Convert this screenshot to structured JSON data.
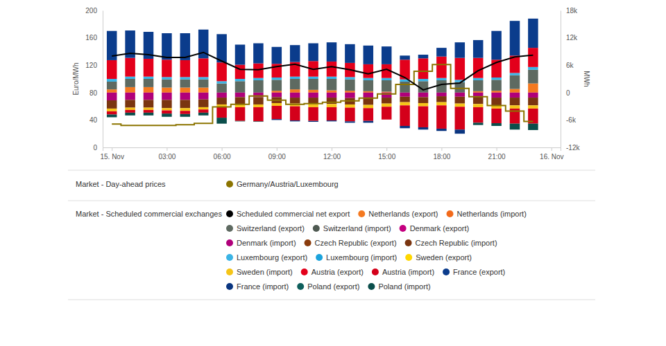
{
  "chart_data": {
    "type": "bar",
    "stacked": true,
    "grid": false,
    "legend": "bottom",
    "y_label": "Euro/MWh",
    "y2_label": "MWh",
    "legend_titles": [
      "Market - Day-ahead prices",
      "Market - Scheduled commercial exchanges"
    ],
    "x": [
      0,
      1,
      2,
      3,
      4,
      5,
      6,
      7,
      8,
      9,
      10,
      11,
      12,
      13,
      14,
      15,
      16,
      17,
      18,
      19,
      20,
      21,
      22,
      23
    ],
    "xlim": [
      -0.5,
      24.5
    ],
    "xticks": [
      {
        "value": 0,
        "label": "15. Nov"
      },
      {
        "value": 3,
        "label": "03:00"
      },
      {
        "value": 6,
        "label": "06:00"
      },
      {
        "value": 9,
        "label": "09:00"
      },
      {
        "value": 12,
        "label": "12:00"
      },
      {
        "value": 15,
        "label": "15:00"
      },
      {
        "value": 18,
        "label": "18:00"
      },
      {
        "value": 21,
        "label": "21:00"
      },
      {
        "value": 24,
        "label": "16. Nov"
      }
    ],
    "ylim": [
      0,
      200
    ],
    "yticks": [
      0,
      40,
      80,
      120,
      160,
      200
    ],
    "y2lim": [
      -12000,
      18000
    ],
    "y2ticks": [
      {
        "value": -12000,
        "label": "-12k"
      },
      {
        "value": -6000,
        "label": "-6k"
      },
      0,
      {
        "value": 6000,
        "label": "6k"
      },
      {
        "value": 12000,
        "label": "12k"
      },
      {
        "value": 18000,
        "label": "18k"
      }
    ],
    "series": [
      {
        "name": "Germany/Austria/Luxembourg",
        "type": "line",
        "line_style": "step",
        "axis": "y",
        "color": "#8c7400",
        "values": [
          34,
          32,
          32,
          32,
          33,
          35,
          59,
          63,
          75,
          69,
          63,
          64,
          66,
          68,
          72,
          78,
          92,
          111,
          121,
          86,
          74,
          61,
          53,
          38
        ]
      },
      {
        "name": "Scheduled commercial net export",
        "type": "line",
        "line_style": "solid",
        "axis": "y2",
        "color": "#000000",
        "values": [
          8000,
          8600,
          8300,
          7700,
          7700,
          8800,
          6900,
          5100,
          5000,
          5700,
          6200,
          5100,
          5700,
          5000,
          4100,
          5100,
          3300,
          600,
          1800,
          2100,
          4800,
          6600,
          7800,
          8200
        ]
      },
      {
        "name": "Netherlands (export)",
        "type": "bar",
        "axis": "y2",
        "color": "#f47920",
        "values": [
          700,
          1200,
          1200,
          1100,
          1100,
          1100,
          0,
          0,
          0,
          400,
          700,
          600,
          500,
          400,
          300,
          200,
          0,
          0,
          0,
          0,
          300,
          400,
          800,
          2000
        ]
      },
      {
        "name": "Netherlands (import)",
        "type": "bar",
        "axis": "y2",
        "color": "#f26a1b",
        "values": [
          0,
          0,
          0,
          0,
          0,
          0,
          0,
          0,
          0,
          0,
          0,
          0,
          0,
          0,
          0,
          0,
          0,
          0,
          0,
          0,
          0,
          0,
          0,
          0
        ]
      },
      {
        "name": "Switzerland (export)",
        "type": "bar",
        "axis": "y2",
        "color": "#5e6a61",
        "values": [
          1700,
          1800,
          1800,
          1800,
          1800,
          1800,
          2000,
          2500,
          2700,
          2400,
          2300,
          2400,
          2500,
          2500,
          2400,
          2500,
          2400,
          2500,
          2700,
          2300,
          2400,
          2400,
          3000,
          3000
        ]
      },
      {
        "name": "Switzerland (import)",
        "type": "bar",
        "axis": "y2",
        "color": "#4f5a52",
        "values": [
          0,
          0,
          0,
          0,
          0,
          0,
          0,
          0,
          0,
          0,
          0,
          0,
          0,
          0,
          0,
          0,
          0,
          0,
          0,
          0,
          0,
          0,
          0,
          0
        ]
      },
      {
        "name": "Denmark (export)",
        "type": "bar",
        "axis": "y2",
        "color": "#c4007f",
        "values": [
          0,
          0,
          0,
          0,
          0,
          0,
          0,
          0,
          0,
          0,
          0,
          0,
          0,
          0,
          0,
          0,
          0,
          0,
          0,
          0,
          0,
          0,
          0,
          0
        ]
      },
      {
        "name": "Denmark (import)",
        "type": "bar",
        "axis": "y2",
        "color": "#b0007a",
        "values": [
          -1700,
          -1600,
          -1600,
          -1600,
          -1600,
          -1500,
          -1100,
          -1000,
          -1000,
          -1000,
          -1100,
          -1100,
          -1100,
          -1200,
          -1200,
          -1100,
          -900,
          -1000,
          -800,
          -900,
          -900,
          -1100,
          -1100,
          -1100
        ]
      },
      {
        "name": "Czech Republic (export)",
        "type": "bar",
        "axis": "y2",
        "color": "#8a3c0c",
        "values": [
          0,
          0,
          0,
          0,
          0,
          0,
          0,
          0,
          0,
          0,
          0,
          0,
          0,
          0,
          0,
          0,
          0,
          0,
          0,
          0,
          0,
          0,
          0,
          0
        ]
      },
      {
        "name": "Czech Republic (import)",
        "type": "bar",
        "axis": "y2",
        "color": "#7a3510",
        "values": [
          -1800,
          -1700,
          -1700,
          -1800,
          -1800,
          -1700,
          -1500,
          -1600,
          -1600,
          -1300,
          -1300,
          -1400,
          -1400,
          -1400,
          -1500,
          -1300,
          -1200,
          -1300,
          -1300,
          -1500,
          -1600,
          -1700,
          -1700,
          -1700
        ]
      },
      {
        "name": "Luxembourg (export)",
        "type": "bar",
        "axis": "y2",
        "color": "#3bb4e5",
        "values": [
          600,
          500,
          500,
          500,
          500,
          500,
          500,
          500,
          500,
          500,
          500,
          500,
          500,
          500,
          500,
          500,
          500,
          500,
          500,
          500,
          500,
          500,
          500,
          600
        ]
      },
      {
        "name": "Luxembourg (import)",
        "type": "bar",
        "axis": "y2",
        "color": "#1ca3dc",
        "values": [
          0,
          0,
          0,
          0,
          0,
          0,
          0,
          0,
          0,
          0,
          0,
          0,
          0,
          0,
          0,
          0,
          0,
          0,
          0,
          0,
          0,
          0,
          0,
          0
        ]
      },
      {
        "name": "Sweden (export)",
        "type": "bar",
        "axis": "y2",
        "color": "#ffd700",
        "values": [
          0,
          0,
          0,
          0,
          0,
          0,
          0,
          0,
          0,
          0,
          0,
          0,
          0,
          0,
          0,
          0,
          0,
          0,
          0,
          0,
          0,
          0,
          0,
          0
        ]
      },
      {
        "name": "Sweden (import)",
        "type": "bar",
        "axis": "y2",
        "color": "#f5c518",
        "values": [
          -600,
          -500,
          -500,
          -500,
          -600,
          -500,
          -600,
          -600,
          -600,
          -600,
          -600,
          -700,
          -700,
          -700,
          -700,
          -700,
          -700,
          -700,
          -700,
          -700,
          -700,
          -700,
          -700,
          -700
        ]
      },
      {
        "name": "Austria (export)",
        "type": "bar",
        "axis": "y2",
        "color": "#e3001b",
        "values": [
          4100,
          4100,
          3900,
          3800,
          3700,
          4100,
          4100,
          3100,
          3200,
          3000,
          3200,
          3400,
          3300,
          3100,
          3000,
          3000,
          4300,
          4500,
          4700,
          4800,
          4400,
          3900,
          3800,
          4200
        ]
      },
      {
        "name": "Austria (import)",
        "type": "bar",
        "axis": "y2",
        "color": "#d4001a",
        "values": [
          -700,
          -600,
          -600,
          -700,
          -700,
          -700,
          -2300,
          -3000,
          -3100,
          -2900,
          -3100,
          -3000,
          -2900,
          -3000,
          -2800,
          -2800,
          -4500,
          -4600,
          -5100,
          -5000,
          -3400,
          -3200,
          -3300,
          -3300
        ]
      },
      {
        "name": "France (export)",
        "type": "bar",
        "axis": "y2",
        "color": "#0b3c8c",
        "values": [
          6400,
          6000,
          5900,
          5800,
          5900,
          6300,
          6200,
          4400,
          4400,
          3700,
          3700,
          3900,
          4200,
          4100,
          4100,
          3900,
          900,
          800,
          1900,
          3400,
          3900,
          6300,
          7600,
          6400
        ]
      },
      {
        "name": "France (import)",
        "type": "bar",
        "axis": "y2",
        "color": "#0a3580",
        "values": [
          0,
          0,
          0,
          0,
          0,
          0,
          0,
          0,
          0,
          -200,
          -200,
          -200,
          -200,
          -300,
          -400,
          0,
          -500,
          -500,
          -500,
          -900,
          0,
          0,
          0,
          0
        ]
      },
      {
        "name": "Poland (export)",
        "type": "bar",
        "axis": "y2",
        "color": "#0f5f5c",
        "values": [
          0,
          0,
          0,
          0,
          0,
          0,
          0,
          0,
          0,
          0,
          0,
          0,
          0,
          0,
          0,
          0,
          0,
          0,
          0,
          0,
          0,
          0,
          0,
          0
        ]
      },
      {
        "name": "Poland (import)",
        "type": "bar",
        "axis": "y2",
        "color": "#0b4e4b",
        "values": [
          -600,
          -600,
          -600,
          -700,
          -600,
          -600,
          -1300,
          -100,
          -100,
          0,
          0,
          0,
          0,
          0,
          0,
          0,
          0,
          0,
          0,
          0,
          -500,
          -600,
          -1300,
          -1400
        ]
      }
    ]
  }
}
